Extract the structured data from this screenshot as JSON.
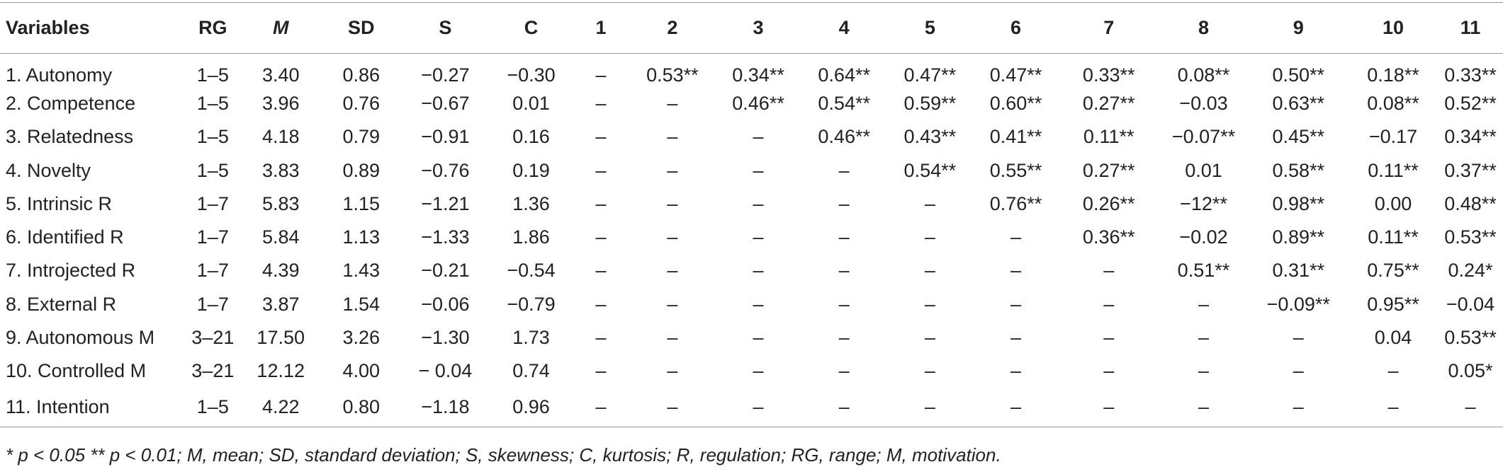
{
  "table": {
    "headers": [
      "Variables",
      "RG",
      "M",
      "SD",
      "S",
      "C",
      "1",
      "2",
      "3",
      "4",
      "5",
      "6",
      "7",
      "8",
      "9",
      "10",
      "11"
    ],
    "rows": [
      [
        "1. Autonomy",
        "1–5",
        "3.40",
        "0.86",
        "−0.27",
        "−0.30",
        "–",
        "0.53**",
        "0.34**",
        "0.64**",
        "0.47**",
        "0.47**",
        "0.33**",
        "0.08**",
        "0.50**",
        "0.18**",
        "0.33**"
      ],
      [
        "2. Competence",
        "1–5",
        "3.96",
        "0.76",
        "−0.67",
        "0.01",
        "–",
        "–",
        "0.46**",
        "0.54**",
        "0.59**",
        "0.60**",
        "0.27**",
        "−0.03",
        "0.63**",
        "0.08**",
        "0.52**"
      ],
      [
        "3. Relatedness",
        "1–5",
        "4.18",
        "0.79",
        "−0.91",
        "0.16",
        "–",
        "–",
        "–",
        "0.46**",
        "0.43**",
        "0.41**",
        "0.11**",
        "−0.07**",
        "0.45**",
        "−0.17",
        "0.34**"
      ],
      [
        "4. Novelty",
        "1–5",
        "3.83",
        "0.89",
        "−0.76",
        "0.19",
        "–",
        "–",
        "–",
        "–",
        "0.54**",
        "0.55**",
        "0.27**",
        "0.01",
        "0.58**",
        "0.11**",
        "0.37**"
      ],
      [
        "5. Intrinsic R",
        "1–7",
        "5.83",
        "1.15",
        "−1.21",
        "1.36",
        "–",
        "–",
        "–",
        "–",
        "–",
        "0.76**",
        "0.26**",
        "−12**",
        "0.98**",
        "0.00",
        "0.48**"
      ],
      [
        "6. Identified R",
        "1–7",
        "5.84",
        "1.13",
        "−1.33",
        "1.86",
        "–",
        "–",
        "–",
        "–",
        "–",
        "–",
        "0.36**",
        "−0.02",
        "0.89**",
        "0.11**",
        "0.53**"
      ],
      [
        "7. Introjected R",
        "1–7",
        "4.39",
        "1.43",
        "−0.21",
        "−0.54",
        "–",
        "–",
        "–",
        "–",
        "–",
        "–",
        "–",
        "0.51**",
        "0.31**",
        "0.75**",
        "0.24*"
      ],
      [
        "8. External R",
        "1–7",
        "3.87",
        "1.54",
        "−0.06",
        "−0.79",
        "–",
        "–",
        "–",
        "–",
        "–",
        "–",
        "–",
        "–",
        "−0.09**",
        "0.95**",
        "−0.04"
      ],
      [
        "9. Autonomous M",
        "3–21",
        "17.50",
        "3.26",
        "−1.30",
        "1.73",
        "–",
        "–",
        "–",
        "–",
        "–",
        "–",
        "–",
        "–",
        "–",
        "0.04",
        "0.53**"
      ],
      [
        "10. Controlled M",
        "3–21",
        "12.12",
        "4.00",
        "− 0.04",
        "0.74",
        "–",
        "–",
        "–",
        "–",
        "–",
        "–",
        "–",
        "–",
        "–",
        "–",
        "0.05*"
      ],
      [
        "11. Intention",
        "1–5",
        "4.22",
        "0.80",
        "−1.18",
        "0.96",
        "–",
        "–",
        "–",
        "–",
        "–",
        "–",
        "–",
        "–",
        "–",
        "–",
        "–"
      ]
    ]
  },
  "note": "* p < 0.05 ** p < 0.01; M, mean; SD, standard deviation; S, skewness; C, kurtosis; R, regulation; RG, range; M, motivation."
}
